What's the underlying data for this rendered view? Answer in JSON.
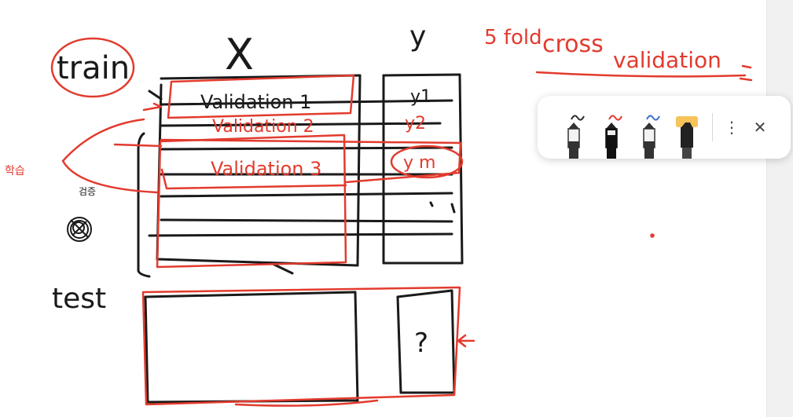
{
  "board": {
    "labels": {
      "train": "train",
      "x_header": "X",
      "y_header": "y",
      "val1": "Validation 1",
      "val2": "Validation 2",
      "val3": "Validation 3",
      "y1": "y1",
      "y2": "y2",
      "y3": "y m",
      "test": "test",
      "question": "?",
      "fold_title_1": "5 fold",
      "fold_title_2": "cross",
      "fold_title_3": "validation",
      "korean_1": "학습",
      "korean_2": "검증"
    }
  },
  "toolbar": {
    "pens": [
      {
        "name": "black pen",
        "stroke": "#2c2c2c"
      },
      {
        "name": "red pen",
        "stroke": "#e23b2e"
      },
      {
        "name": "blue pen",
        "stroke": "#3b6fd1"
      },
      {
        "name": "highlighter",
        "stroke": "#f6c25a"
      }
    ],
    "more_label": "⋮",
    "close_label": "✕"
  }
}
